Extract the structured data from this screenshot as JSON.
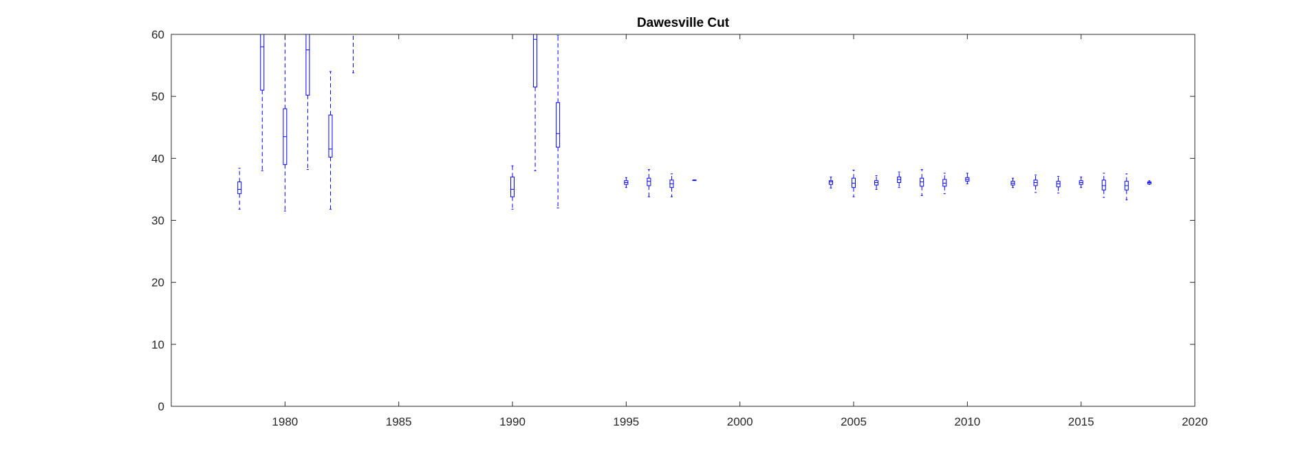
{
  "chart_data": {
    "type": "box",
    "title": "Dawesville Cut",
    "xlabel": "",
    "ylabel": "",
    "xlim": [
      1975,
      2020
    ],
    "ylim": [
      0,
      60
    ],
    "xticks": [
      1980,
      1985,
      1990,
      1995,
      2000,
      2005,
      2010,
      2015,
      2020
    ],
    "yticks": [
      0,
      10,
      20,
      30,
      40,
      50,
      60
    ],
    "grid": false,
    "legend": "none",
    "colors": {
      "box": "#0000ff",
      "axis": "#262626",
      "background": "#ffffff"
    },
    "boxes": [
      {
        "x": 1978,
        "low": 31.8,
        "q1": 34.3,
        "median": 35.0,
        "q3": 36.2,
        "high": 38.4
      },
      {
        "x": 1979,
        "low": 38.0,
        "q1": 51.0,
        "median": 58.0,
        "q3": 61.0,
        "high": 62.0
      },
      {
        "x": 1980,
        "low": 31.5,
        "q1": 39.0,
        "median": 43.5,
        "q3": 48.0,
        "high": 60.5
      },
      {
        "x": 1981,
        "low": 38.2,
        "q1": 50.2,
        "median": 57.5,
        "q3": 61.0,
        "high": 62.0
      },
      {
        "x": 1982,
        "low": 31.8,
        "q1": 40.2,
        "median": 41.5,
        "q3": 47.0,
        "high": 54.0
      },
      {
        "x": 1983,
        "low": 53.8,
        "q1": 62.0,
        "median": 63.0,
        "q3": 64.0,
        "high": 65.0
      },
      {
        "x": 1990,
        "low": 31.8,
        "q1": 33.8,
        "median": 35.0,
        "q3": 37.0,
        "high": 38.8
      },
      {
        "x": 1991,
        "low": 38.0,
        "q1": 51.5,
        "median": 59.2,
        "q3": 61.0,
        "high": 62.0
      },
      {
        "x": 1992,
        "low": 32.0,
        "q1": 41.8,
        "median": 44.0,
        "q3": 49.0,
        "high": 59.8
      },
      {
        "x": 1995,
        "low": 35.3,
        "q1": 35.8,
        "median": 36.1,
        "q3": 36.4,
        "high": 36.9
      },
      {
        "x": 1996,
        "low": 33.8,
        "q1": 35.6,
        "median": 36.3,
        "q3": 36.8,
        "high": 38.2
      },
      {
        "x": 1997,
        "low": 33.8,
        "q1": 35.3,
        "median": 35.9,
        "q3": 36.5,
        "high": 37.5
      },
      {
        "x": 1998,
        "low": 36.5,
        "q1": 36.5,
        "median": 36.5,
        "q3": 36.5,
        "high": 36.5
      },
      {
        "x": 2004,
        "low": 35.2,
        "q1": 35.8,
        "median": 36.2,
        "q3": 36.4,
        "high": 37.0
      },
      {
        "x": 2005,
        "low": 33.8,
        "q1": 35.3,
        "median": 36.0,
        "q3": 36.8,
        "high": 38.1
      },
      {
        "x": 2006,
        "low": 35.0,
        "q1": 35.7,
        "median": 36.1,
        "q3": 36.4,
        "high": 37.2
      },
      {
        "x": 2007,
        "low": 35.3,
        "q1": 36.1,
        "median": 36.6,
        "q3": 37.0,
        "high": 37.8
      },
      {
        "x": 2008,
        "low": 34.0,
        "q1": 35.5,
        "median": 36.2,
        "q3": 36.8,
        "high": 38.2
      },
      {
        "x": 2009,
        "low": 34.3,
        "q1": 35.5,
        "median": 36.0,
        "q3": 36.6,
        "high": 37.6
      },
      {
        "x": 2010,
        "low": 35.9,
        "q1": 36.3,
        "median": 36.6,
        "q3": 36.9,
        "high": 37.6
      },
      {
        "x": 2012,
        "low": 35.3,
        "q1": 35.7,
        "median": 36.0,
        "q3": 36.3,
        "high": 36.8
      },
      {
        "x": 2013,
        "low": 34.5,
        "q1": 35.6,
        "median": 36.1,
        "q3": 36.5,
        "high": 37.3
      },
      {
        "x": 2014,
        "low": 34.4,
        "q1": 35.4,
        "median": 35.9,
        "q3": 36.3,
        "high": 37.1
      },
      {
        "x": 2015,
        "low": 35.3,
        "q1": 35.8,
        "median": 36.1,
        "q3": 36.4,
        "high": 37.0
      },
      {
        "x": 2016,
        "low": 33.7,
        "q1": 34.9,
        "median": 35.6,
        "q3": 36.5,
        "high": 37.6
      },
      {
        "x": 2017,
        "low": 33.3,
        "q1": 34.9,
        "median": 35.6,
        "q3": 36.3,
        "high": 37.5
      },
      {
        "x": 2018,
        "low": 35.8,
        "q1": 35.9,
        "median": 36.1,
        "q3": 36.2,
        "high": 36.4
      }
    ]
  }
}
